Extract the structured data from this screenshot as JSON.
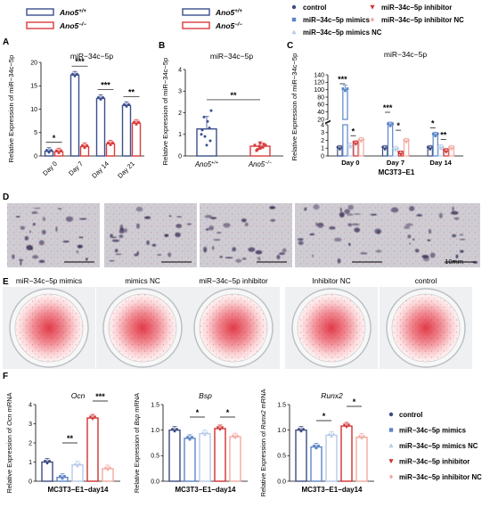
{
  "panel_letters": {
    "a": "A",
    "b": "B",
    "c": "C",
    "d": "D",
    "e": "E",
    "f": "F"
  },
  "colors": {
    "wt": "#3a4f8c",
    "ko": "#d93b3b",
    "control": "#3d4b82",
    "mimics": "#5b86c6",
    "mimicsNC": "#b6cbe8",
    "inhibitor": "#d13030",
    "inhibitorNC": "#f2aaa0"
  },
  "legend_top_left": [
    {
      "label": "Ano5",
      "sup": "+/+",
      "color_key": "wt"
    },
    {
      "label": "Ano5",
      "sup": "−/−",
      "color_key": "ko"
    }
  ],
  "legend_top_mid": [
    {
      "label": "Ano5",
      "sup": "+/+",
      "color_key": "wt"
    },
    {
      "label": "Ano5",
      "sup": "−/−",
      "color_key": "ko"
    }
  ],
  "legend_top_right": [
    {
      "label": "control",
      "color_key": "control",
      "marker": "dot"
    },
    {
      "label": "miR−34c−5p mimics",
      "color_key": "mimics",
      "marker": "square"
    },
    {
      "label": "miR−34c−5p mimics NC",
      "color_key": "mimicsNC",
      "marker": "triangle"
    },
    {
      "label": "miR−34c−5p inhibitor",
      "color_key": "inhibitor",
      "marker": "tri-down"
    },
    {
      "label": "miR−34c−5p inhibitor NC",
      "color_key": "inhibitorNC",
      "marker": "diamond"
    }
  ],
  "chart_data": [
    {
      "id": "A",
      "type": "bar",
      "title": "miR−34c−5p",
      "ylabel": "Relative Expression of miR−34c−5p",
      "ylim": [
        0,
        20
      ],
      "yticks": [
        0,
        5,
        10,
        15,
        20
      ],
      "categories": [
        "Day 0",
        "Day 7",
        "Day 14",
        "Day 21"
      ],
      "series": [
        {
          "name": "Ano5+/+",
          "color_key": "wt",
          "values": [
            1.0,
            17.3,
            12.3,
            10.8
          ]
        },
        {
          "name": "Ano5−/−",
          "color_key": "ko",
          "values": [
            0.9,
            2.0,
            2.6,
            7.0
          ]
        }
      ],
      "significance": [
        "*",
        "***",
        "***",
        "**"
      ]
    },
    {
      "id": "B",
      "type": "bar",
      "title": "miR−34c−5p",
      "ylabel": "Relative Expression of miR−34c−5p",
      "ylim": [
        0,
        4
      ],
      "yticks": [
        0,
        1,
        2,
        3,
        4
      ],
      "categories": [
        "Ano5+/+",
        "Ano5−/−"
      ],
      "category_labels": [
        {
          "label": "Ano5",
          "sup": "+/+"
        },
        {
          "label": "Ano5",
          "sup": "−/−"
        }
      ],
      "series": [
        {
          "name": "Ano5",
          "color_keys": [
            "wt",
            "ko"
          ],
          "values": [
            1.25,
            0.45
          ]
        }
      ],
      "significance": [
        "**"
      ]
    },
    {
      "id": "C",
      "type": "bar",
      "title": "miR−34c−5p",
      "ylabel": "Relative Expression of miR−34c−5p",
      "xlabel": "MC3T3−E1",
      "broken_axis": true,
      "ylim_lower": [
        0,
        4
      ],
      "yticks_lower": [
        0,
        1,
        2,
        3,
        4
      ],
      "ylim_upper": [
        20,
        140
      ],
      "yticks_upper": [
        20,
        40,
        60,
        80,
        100,
        120,
        140
      ],
      "categories": [
        "Day 0",
        "Day 7",
        "Day 14"
      ],
      "series": [
        {
          "name": "control",
          "color_key": "control",
          "values": [
            1.0,
            1.0,
            1.0
          ]
        },
        {
          "name": "miR−34c−5p mimics",
          "color_key": "mimics",
          "values": [
            100,
            4.0,
            2.7
          ]
        },
        {
          "name": "miR−34c−5p mimics NC",
          "color_key": "mimicsNC",
          "values": [
            1.3,
            0.9,
            1.1
          ]
        },
        {
          "name": "miR−34c−5p inhibitor",
          "color_key": "inhibitor",
          "values": [
            1.6,
            0.3,
            0.6
          ]
        },
        {
          "name": "miR−34c−5p inhibitor NC",
          "color_key": "inhibitorNC",
          "values": [
            2.0,
            1.9,
            1.0
          ]
        }
      ],
      "significance": [
        "***",
        "*",
        "***",
        "*",
        "*",
        "**"
      ]
    },
    {
      "id": "F1",
      "type": "bar",
      "title": "Ocn",
      "ylabel": "Relative Expression of Ocn mRNA",
      "ylabel_italic_word": "Ocn",
      "xlabel": "MC3T3−E1−day14",
      "ylim": [
        0,
        4
      ],
      "yticks": [
        0,
        1,
        2,
        3,
        4
      ],
      "series": [
        {
          "name": "control",
          "color_key": "control",
          "values": [
            1.0
          ]
        },
        {
          "name": "miR−34c−5p mimics",
          "color_key": "mimics",
          "values": [
            0.2
          ]
        },
        {
          "name": "miR−34c−5p mimics NC",
          "color_key": "mimicsNC",
          "values": [
            0.85
          ]
        },
        {
          "name": "miR−34c−5p inhibitor",
          "color_key": "inhibitor",
          "values": [
            3.3
          ]
        },
        {
          "name": "miR−34c−5p inhibitor NC",
          "color_key": "inhibitorNC",
          "values": [
            0.65
          ]
        }
      ],
      "significance": [
        "**",
        "***"
      ]
    },
    {
      "id": "F2",
      "type": "bar",
      "title": "Bsp",
      "ylabel": "Relative Expression of Bsp mRNA",
      "ylabel_italic_word": "Bsp",
      "xlabel": "MC3T3−E1−day14",
      "ylim": [
        0,
        1.5
      ],
      "yticks": [
        0.0,
        0.5,
        1.0,
        1.5
      ],
      "series": [
        {
          "name": "control",
          "color_key": "control",
          "values": [
            1.0
          ]
        },
        {
          "name": "miR−34c−5p mimics",
          "color_key": "mimics",
          "values": [
            0.84
          ]
        },
        {
          "name": "miR−34c−5p mimics NC",
          "color_key": "mimicsNC",
          "values": [
            0.93
          ]
        },
        {
          "name": "miR−34c−5p inhibitor",
          "color_key": "inhibitor",
          "values": [
            1.03
          ]
        },
        {
          "name": "miR−34c−5p inhibitor NC",
          "color_key": "inhibitorNC",
          "values": [
            0.87
          ]
        }
      ],
      "significance": [
        "*",
        "*"
      ]
    },
    {
      "id": "F3",
      "type": "bar",
      "title": "Runx2",
      "ylabel": "Relative Expression of Runx2 mRNA",
      "ylabel_italic_word": "Runx2",
      "xlabel": "MC3T3−E1−day14",
      "ylim": [
        0,
        1.5
      ],
      "yticks": [
        0.0,
        0.5,
        1.0,
        1.5
      ],
      "series": [
        {
          "name": "control",
          "color_key": "control",
          "values": [
            1.0
          ]
        },
        {
          "name": "miR−34c−5p mimics",
          "color_key": "mimics",
          "values": [
            0.67
          ]
        },
        {
          "name": "miR−34c−5p mimics NC",
          "color_key": "mimicsNC",
          "values": [
            0.9
          ]
        },
        {
          "name": "miR−34c−5p inhibitor",
          "color_key": "inhibitor",
          "values": [
            1.08
          ]
        },
        {
          "name": "miR−34c−5p inhibitor NC",
          "color_key": "inhibitorNC",
          "values": [
            0.86
          ]
        }
      ],
      "significance": [
        "*",
        "*"
      ]
    }
  ],
  "legend_F": [
    {
      "label": "control",
      "color_key": "control",
      "marker": "dot"
    },
    {
      "label": "miR−34c−5p mimics",
      "color_key": "mimics",
      "marker": "square"
    },
    {
      "label": "miR−34c−5p mimics NC",
      "color_key": "mimicsNC",
      "marker": "triangle"
    },
    {
      "label": "miR−34c−5p inhibitor",
      "color_key": "inhibitor",
      "marker": "tri-down"
    },
    {
      "label": "miR−34c−5p inhibitor NC",
      "color_key": "inhibitorNC",
      "marker": "diamond"
    }
  ],
  "panel_D": {
    "scale_bar_label": "10mm"
  },
  "panel_E": {
    "labels": [
      "miR−34c−5p mimics",
      "mimics NC",
      "miR−34c−5p inhibitor",
      "Inhibitor NC",
      "control"
    ]
  }
}
